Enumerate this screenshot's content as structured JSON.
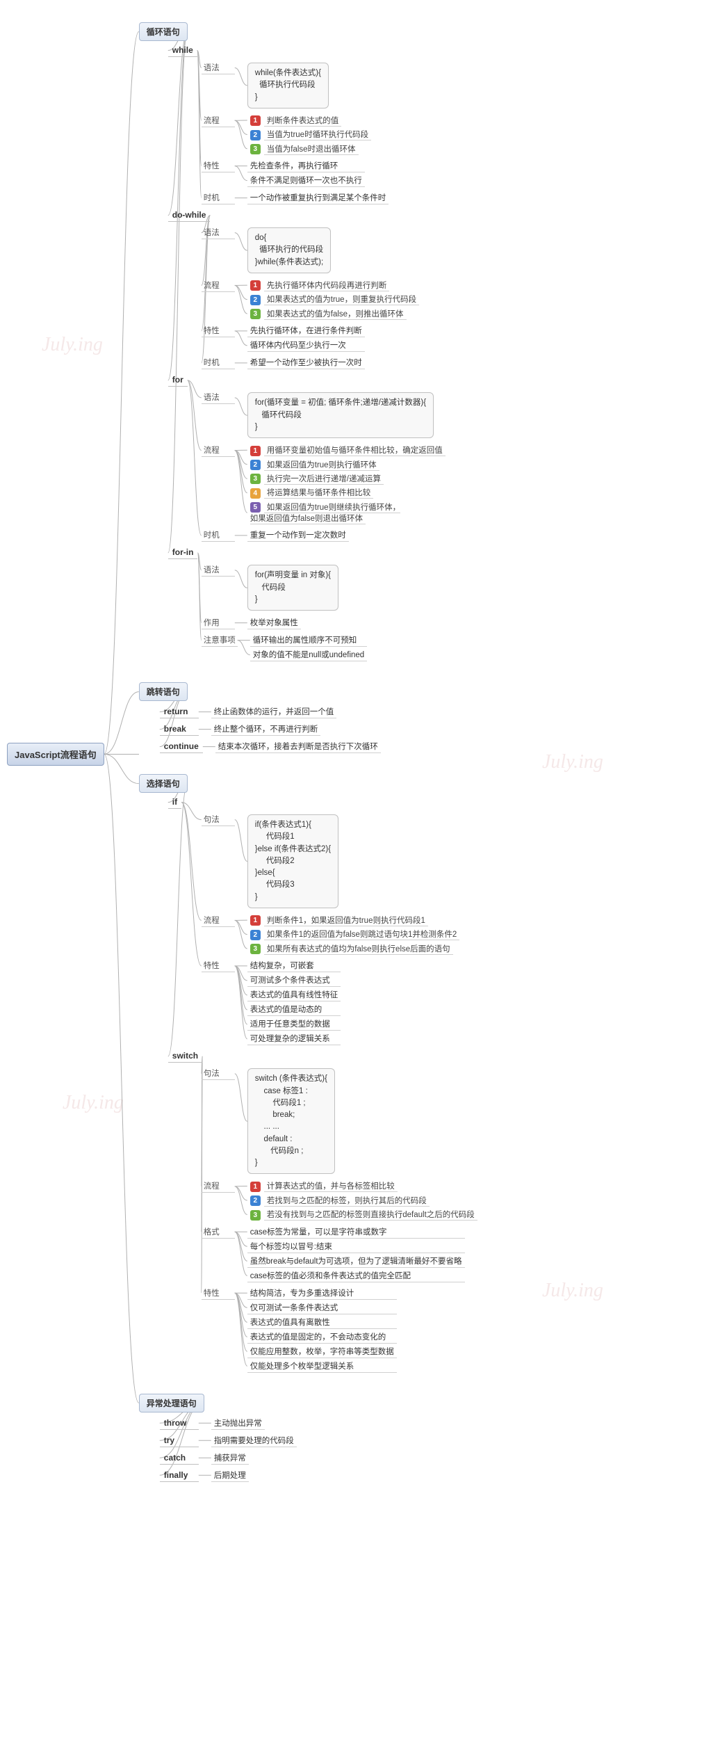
{
  "watermark": "July.ing",
  "root": "JavaScript流程语句",
  "badge_colors": [
    "#d43f3a",
    "#3b82d4",
    "#6cb33f",
    "#e8a33d",
    "#7b5fb0"
  ],
  "node_colors": {
    "root_bg": "#e8eef7",
    "l1_bg": "#f0f4fa",
    "border": "#a8b8d0",
    "line": "#b0b0b0"
  },
  "branches": [
    {
      "label": "循环语句",
      "children": [
        {
          "label": "while",
          "rows": [
            {
              "key": "语法",
              "code": "while(条件表达式){\n  循环执行代码段\n}"
            },
            {
              "key": "流程",
              "steps": [
                "判断条件表达式的值",
                "当值为true时循环执行代码段",
                "当值为false时退出循环体"
              ]
            },
            {
              "key": "特性",
              "lines": [
                "先检查条件，再执行循环",
                "条件不满足则循环一次也不执行"
              ]
            },
            {
              "key": "时机",
              "lines": [
                "一个动作被重复执行到满足某个条件时"
              ]
            }
          ]
        },
        {
          "label": "do-while",
          "rows": [
            {
              "key": "语法",
              "code": "do{\n  循环执行的代码段\n}while(条件表达式);"
            },
            {
              "key": "流程",
              "steps": [
                "先执行循环体内代码段再进行判断",
                "如果表达式的值为true，则重复执行代码段",
                "如果表达式的值为false，则推出循环体"
              ]
            },
            {
              "key": "特性",
              "lines": [
                "先执行循环体，在进行条件判断",
                "循环体内代码至少执行一次"
              ]
            },
            {
              "key": "时机",
              "lines": [
                "希望一个动作至少被执行一次时"
              ]
            }
          ]
        },
        {
          "label": "for",
          "rows": [
            {
              "key": "语法",
              "code": "for(循环变量 = 初值; 循环条件;递增/递减计数器){\n   循环代码段\n}"
            },
            {
              "key": "流程",
              "steps": [
                "用循环变量初始值与循环条件相比较，确定返回值",
                "如果返回值为true则执行循环体",
                "执行完一次后进行递增/递减运算",
                "将运算结果与循环条件相比较",
                "如果返回值为true则继续执行循环体，\n如果返回值为false则退出循环体"
              ]
            },
            {
              "key": "时机",
              "lines": [
                "重复一个动作到一定次数时"
              ]
            }
          ]
        },
        {
          "label": "for-in",
          "rows": [
            {
              "key": "语法",
              "code": "for(声明变量 in 对象){\n   代码段\n}"
            },
            {
              "key": "作用",
              "lines": [
                "枚举对象属性"
              ]
            },
            {
              "key": "注意事项",
              "lines": [
                "循环输出的属性顺序不可预知",
                "对象的值不能是null或undefined"
              ]
            }
          ]
        }
      ]
    },
    {
      "label": "跳转语句",
      "keywords": [
        {
          "kw": "return",
          "desc": "终止函数体的运行，并返回一个值"
        },
        {
          "kw": "break",
          "desc": "终止整个循环，不再进行判断"
        },
        {
          "kw": "continue",
          "desc": "结束本次循环，接着去判断是否执行下次循环"
        }
      ]
    },
    {
      "label": "选择语句",
      "children": [
        {
          "label": "if",
          "rows": [
            {
              "key": "句法",
              "code": "if(条件表达式1){\n     代码段1\n}else if(条件表达式2){\n     代码段2\n}else{\n     代码段3\n}"
            },
            {
              "key": "流程",
              "steps": [
                "判断条件1，如果返回值为true则执行代码段1",
                "如果条件1的返回值为false则跳过语句块1并检测条件2",
                "如果所有表达式的值均为false则执行else后面的语句"
              ]
            },
            {
              "key": "特性",
              "lines": [
                "结构复杂，可嵌套",
                "可测试多个条件表达式",
                "表达式的值具有线性特征",
                "表达式的值是动态的",
                "适用于任意类型的数据",
                "可处理复杂的逻辑关系"
              ]
            }
          ]
        },
        {
          "label": "switch",
          "rows": [
            {
              "key": "句法",
              "code": "switch (条件表达式){\n    case 标签1 :\n        代码段1 ;\n        break;\n    ... ...\n    default :\n       代码段n ;\n}"
            },
            {
              "key": "流程",
              "steps": [
                "计算表达式的值，并与各标签相比较",
                "若找到与之匹配的标签，则执行其后的代码段",
                "若没有找到与之匹配的标签则直接执行default之后的代码段"
              ]
            },
            {
              "key": "格式",
              "lines": [
                "case标签为常量，可以是字符串或数字",
                "每个标签均以冒号:结束",
                "虽然break与default为可选项，但为了逻辑清晰最好不要省略",
                "case标签的值必须和条件表达式的值完全匹配"
              ]
            },
            {
              "key": "特性",
              "lines": [
                "结构简洁，专为多重选择设计",
                "仅可测试一条条件表达式",
                "表达式的值具有离散性",
                "表达式的值是固定的，不会动态变化的",
                "仅能应用整数，枚举，字符串等类型数据",
                "仅能处理多个枚举型逻辑关系"
              ]
            }
          ]
        }
      ]
    },
    {
      "label": "异常处理语句",
      "keywords": [
        {
          "kw": "throw",
          "desc": "主动抛出异常"
        },
        {
          "kw": "try",
          "desc": "指明需要处理的代码段"
        },
        {
          "kw": "catch",
          "desc": "捕获异常"
        },
        {
          "kw": "finally",
          "desc": "后期处理"
        }
      ]
    }
  ]
}
